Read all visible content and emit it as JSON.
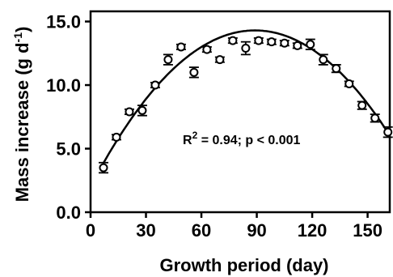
{
  "chart_data": {
    "type": "scatter",
    "xlabel": "Growth period (day)",
    "ylabel": "Mass increase (g d",
    "ylabel_sup": "-1",
    "ylabel_close": ")",
    "xlim": [
      0,
      162
    ],
    "ylim": [
      0,
      15.8
    ],
    "xticks": [
      "0",
      "30",
      "60",
      "90",
      "120",
      "150"
    ],
    "xtick_values": [
      0,
      30,
      60,
      90,
      120,
      150
    ],
    "yticks": [
      "0.0",
      "5.0",
      "10.0",
      "15.0"
    ],
    "ytick_values": [
      0,
      5,
      10,
      15
    ],
    "annotation": {
      "r2_prefix": "R",
      "r2_sup": "2",
      "rest": " = 0.94; p < 0.001"
    },
    "points": [
      {
        "x": 7,
        "y": 3.5,
        "err": 0.4
      },
      {
        "x": 14,
        "y": 5.9,
        "err": 0.2
      },
      {
        "x": 21,
        "y": 7.9,
        "err": 0.2
      },
      {
        "x": 28,
        "y": 8.0,
        "err": 0.4
      },
      {
        "x": 35,
        "y": 10.0,
        "err": 0.2
      },
      {
        "x": 42,
        "y": 12.0,
        "err": 0.4
      },
      {
        "x": 49,
        "y": 13.0,
        "err": 0.2
      },
      {
        "x": 56,
        "y": 11.0,
        "err": 0.4
      },
      {
        "x": 63,
        "y": 12.8,
        "err": 0.2
      },
      {
        "x": 70,
        "y": 12.0,
        "err": 0.2
      },
      {
        "x": 77,
        "y": 13.5,
        "err": 0.2
      },
      {
        "x": 84,
        "y": 12.9,
        "err": 0.5
      },
      {
        "x": 91,
        "y": 13.5,
        "err": 0.2
      },
      {
        "x": 98,
        "y": 13.4,
        "err": 0.2
      },
      {
        "x": 105,
        "y": 13.3,
        "err": 0.2
      },
      {
        "x": 112,
        "y": 13.1,
        "err": 0.2
      },
      {
        "x": 119,
        "y": 13.2,
        "err": 0.4
      },
      {
        "x": 126,
        "y": 12.0,
        "err": 0.4
      },
      {
        "x": 133,
        "y": 11.3,
        "err": 0.3
      },
      {
        "x": 140,
        "y": 10.1,
        "err": 0.2
      },
      {
        "x": 147,
        "y": 8.4,
        "err": 0.3
      },
      {
        "x": 154,
        "y": 7.4,
        "err": 0.3
      },
      {
        "x": 161,
        "y": 6.3,
        "err": 0.4
      }
    ],
    "fit": {
      "type": "quadratic",
      "vertex_x": 89,
      "vertex_y": 14.3,
      "a": -0.00155,
      "x_range": [
        7,
        161
      ]
    },
    "grid": false,
    "legend": "none"
  }
}
